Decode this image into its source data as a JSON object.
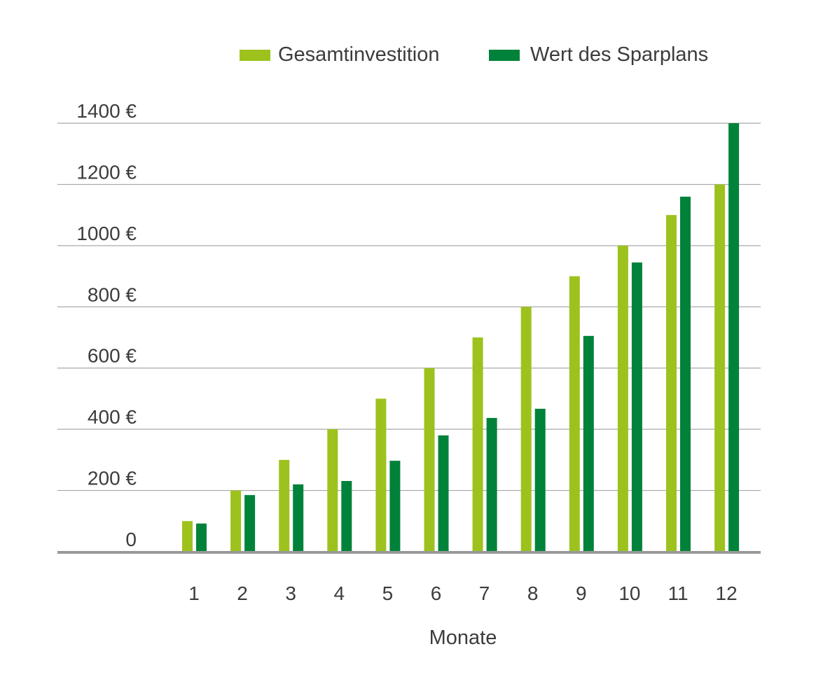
{
  "chart_data": {
    "type": "bar",
    "title": "",
    "xlabel": "Monate",
    "ylabel": "",
    "categories": [
      "1",
      "2",
      "3",
      "4",
      "5",
      "6",
      "7",
      "8",
      "9",
      "10",
      "11",
      "12"
    ],
    "series": [
      {
        "name": "Gesamtinvestition",
        "color": "#9dc21e",
        "values": [
          100,
          200,
          300,
          400,
          500,
          600,
          700,
          800,
          900,
          1000,
          1100,
          1200
        ]
      },
      {
        "name": "Wert des Sparplans",
        "color": "#00823a",
        "values": [
          92,
          185,
          220,
          231,
          297,
          380,
          437,
          467,
          705,
          945,
          1160,
          1400
        ]
      }
    ],
    "ylim": [
      0,
      1400
    ],
    "yticks": [
      0,
      200,
      400,
      600,
      800,
      1000,
      1200,
      1400
    ],
    "ytick_labels": [
      "0",
      "200 €",
      "400 €",
      "600 €",
      "800 €",
      "1000 €",
      "1200 €",
      "1400 €"
    ],
    "grid": true,
    "legend": "top-right"
  }
}
